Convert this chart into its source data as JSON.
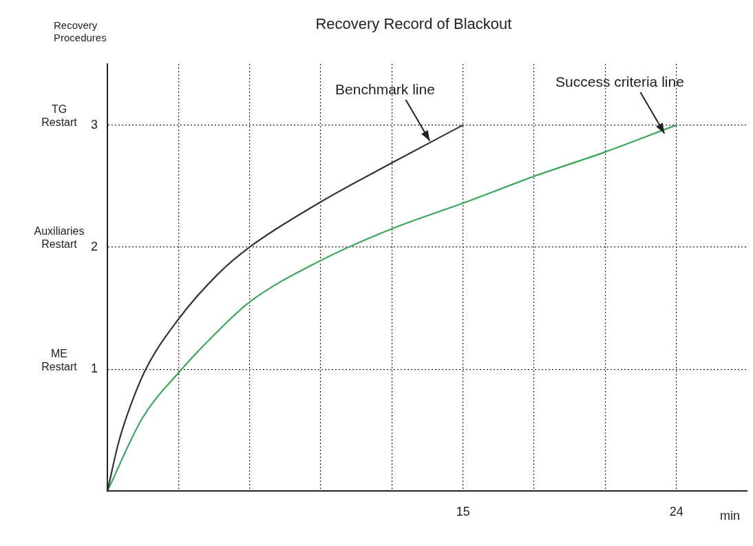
{
  "chart_data": {
    "type": "line",
    "title": "Recovery Record of Blackout",
    "ylabel": "Recovery\nProcedures",
    "xlabel": "min",
    "xlim": [
      0,
      27
    ],
    "ylim": [
      0,
      3.5
    ],
    "xticks": [
      {
        "value": 3,
        "label": null
      },
      {
        "value": 6,
        "label": null
      },
      {
        "value": 9,
        "label": null
      },
      {
        "value": 12,
        "label": null
      },
      15,
      {
        "value": 18,
        "label": null
      },
      {
        "value": 21,
        "label": null
      },
      24
    ],
    "yticks": [
      1,
      2,
      3
    ],
    "grid": true,
    "legend": false,
    "marker": "none",
    "line_style": "solid",
    "series": [
      {
        "color": "#333333",
        "x": [
          0,
          0.46,
          0.9,
          1.62,
          3,
          4.67,
          6,
          9,
          12,
          15
        ],
        "values": [
          0,
          0.39,
          0.66,
          1,
          1.41,
          1.78,
          2,
          2.37,
          2.69,
          3
        ]
      },
      {
        "color": "#3aa65a",
        "x": [
          0,
          1.48,
          3,
          4.5,
          6,
          9,
          12,
          15,
          18,
          21,
          24
        ],
        "values": [
          0,
          0.6,
          0.97,
          1.28,
          1.55,
          1.89,
          2.15,
          2.36,
          2.58,
          2.78,
          3
        ]
      }
    ],
    "annotations": [
      "ME\nRestart",
      "Auxiliaries\nRestart",
      "TG\nRestart",
      {
        "text": "Benchmark line",
        "x": 13.6,
        "y": 2.87
      },
      {
        "text": "Success criteria line",
        "x": 23.5,
        "y": 2.93
      }
    ]
  }
}
